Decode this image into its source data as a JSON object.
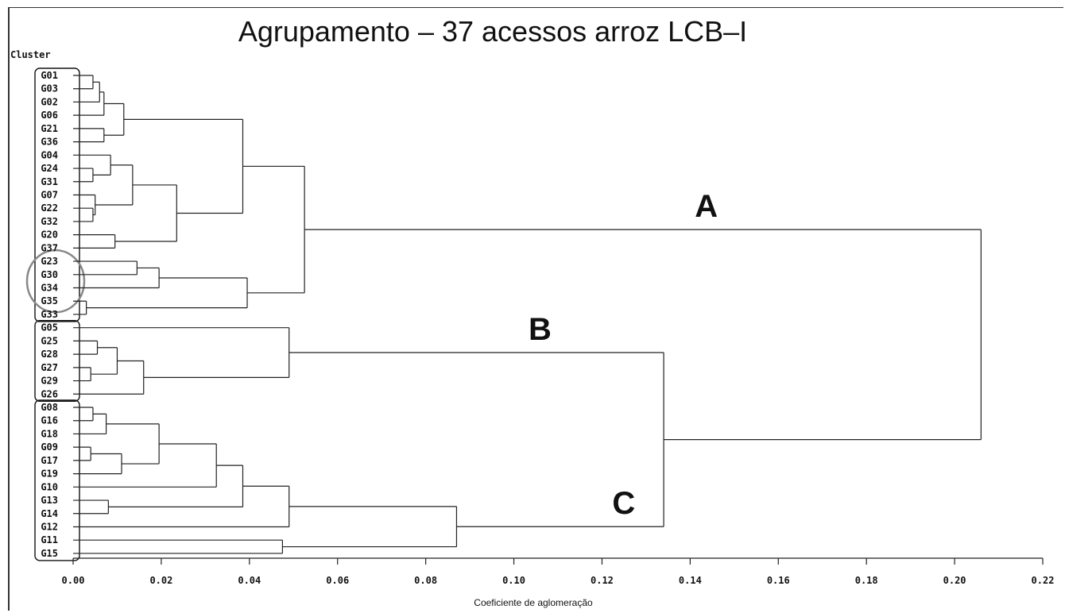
{
  "chart_data": {
    "type": "dendrogram",
    "title": "Agrupamento – 37 acessos arroz LCB–I",
    "cluster_header": "Cluster",
    "xlabel": "Coeficiente de aglomeração",
    "xlim": [
      0.0,
      0.22
    ],
    "x_ticks": [
      "0.00",
      "0.02",
      "0.04",
      "0.06",
      "0.08",
      "0.10",
      "0.12",
      "0.14",
      "0.16",
      "0.18",
      "0.20",
      "0.22"
    ],
    "leaves": [
      "G01",
      "G03",
      "G02",
      "G06",
      "G21",
      "G36",
      "G04",
      "G24",
      "G31",
      "G07",
      "G22",
      "G32",
      "G20",
      "G37",
      "G23",
      "G30",
      "G34",
      "G35",
      "G33",
      "G05",
      "G25",
      "G28",
      "G27",
      "G29",
      "G26",
      "G08",
      "G16",
      "G18",
      "G09",
      "G17",
      "G19",
      "G10",
      "G13",
      "G14",
      "G12",
      "G11",
      "G15"
    ],
    "merges": [
      {
        "id": "m1",
        "left": "G01",
        "right": "G03",
        "height": 0.0045
      },
      {
        "id": "m2",
        "left": "m1",
        "right": "G02",
        "height": 0.006
      },
      {
        "id": "m3",
        "left": "m2",
        "right": "G06",
        "height": 0.007
      },
      {
        "id": "m4",
        "left": "G21",
        "right": "G36",
        "height": 0.007
      },
      {
        "id": "m5",
        "left": "m3",
        "right": "m4",
        "height": 0.0115
      },
      {
        "id": "m6",
        "left": "G24",
        "right": "G31",
        "height": 0.0045
      },
      {
        "id": "m7",
        "left": "G04",
        "right": "m6",
        "height": 0.0085
      },
      {
        "id": "m8",
        "left": "G22",
        "right": "G32",
        "height": 0.0045
      },
      {
        "id": "m9",
        "left": "G07",
        "right": "m8",
        "height": 0.005
      },
      {
        "id": "m10",
        "left": "m7",
        "right": "m9",
        "height": 0.0135
      },
      {
        "id": "m11",
        "left": "G20",
        "right": "G37",
        "height": 0.0095
      },
      {
        "id": "m12",
        "left": "m10",
        "right": "m11",
        "height": 0.0235
      },
      {
        "id": "m13",
        "left": "m5",
        "right": "m12",
        "height": 0.0385
      },
      {
        "id": "m14",
        "left": "G23",
        "right": "G30",
        "height": 0.0145
      },
      {
        "id": "m15",
        "left": "m14",
        "right": "G34",
        "height": 0.0195
      },
      {
        "id": "m16",
        "left": "G35",
        "right": "G33",
        "height": 0.003
      },
      {
        "id": "m17",
        "left": "m15",
        "right": "m16",
        "height": 0.0395
      },
      {
        "id": "m18",
        "left": "m13",
        "right": "m17",
        "height": 0.0525
      },
      {
        "id": "m19",
        "left": "G25",
        "right": "G28",
        "height": 0.0055
      },
      {
        "id": "m20",
        "left": "G27",
        "right": "G29",
        "height": 0.004
      },
      {
        "id": "m21",
        "left": "m19",
        "right": "m20",
        "height": 0.01
      },
      {
        "id": "m22",
        "left": "m21",
        "right": "G26",
        "height": 0.016
      },
      {
        "id": "m23",
        "left": "G05",
        "right": "m22",
        "height": 0.049
      },
      {
        "id": "m24",
        "left": "G08",
        "right": "G16",
        "height": 0.0045
      },
      {
        "id": "m25",
        "left": "m24",
        "right": "G18",
        "height": 0.0075
      },
      {
        "id": "m26",
        "left": "G09",
        "right": "G17",
        "height": 0.004
      },
      {
        "id": "m27",
        "left": "m26",
        "right": "G19",
        "height": 0.011
      },
      {
        "id": "m28",
        "left": "m25",
        "right": "m27",
        "height": 0.0195
      },
      {
        "id": "m29",
        "left": "m28",
        "right": "G10",
        "height": 0.0325
      },
      {
        "id": "m30",
        "left": "G13",
        "right": "G14",
        "height": 0.008
      },
      {
        "id": "m31",
        "left": "m29",
        "right": "m30",
        "height": 0.0385
      },
      {
        "id": "m32",
        "left": "m31",
        "right": "G12",
        "height": 0.049
      },
      {
        "id": "m33",
        "left": "G11",
        "right": "G15",
        "height": 0.0475
      },
      {
        "id": "m34",
        "left": "m32",
        "right": "m33",
        "height": 0.087
      },
      {
        "id": "m35",
        "left": "m23",
        "right": "m34",
        "height": 0.134
      },
      {
        "id": "m36",
        "left": "m18",
        "right": "m35",
        "height": 0.206
      }
    ],
    "group_labels": [
      {
        "label": "A",
        "members": [
          "m18"
        ]
      },
      {
        "label": "B",
        "members": [
          "m23"
        ]
      },
      {
        "label": "C",
        "members": [
          "m34"
        ]
      }
    ],
    "boxed_groups": [
      {
        "from": "G01",
        "to": "G33"
      },
      {
        "from": "G05",
        "to": "G26"
      },
      {
        "from": "G08",
        "to": "G15"
      }
    ],
    "circled_leaves": {
      "from": "G23",
      "to": "G35"
    }
  }
}
